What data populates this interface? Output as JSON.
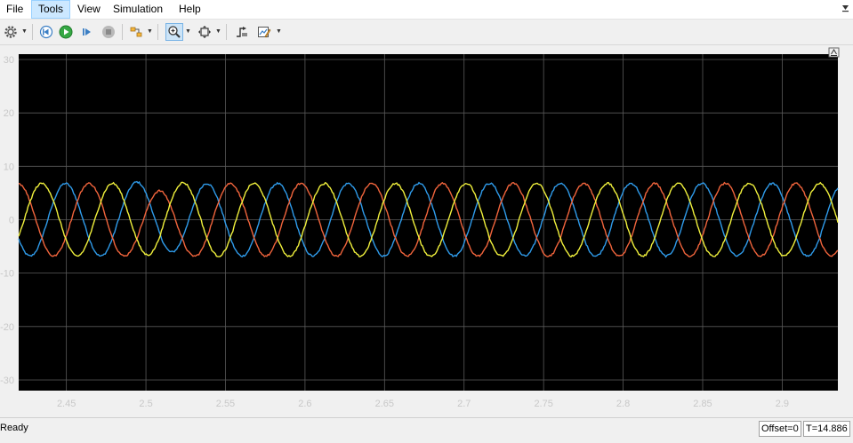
{
  "menu": {
    "file": "File",
    "tools": "Tools",
    "view": "View",
    "simulation": "Simulation",
    "help": "Help"
  },
  "toolbar": {
    "icons": [
      "gear-icon",
      "chevron-down-icon",
      "step-back-icon",
      "run-icon",
      "step-forward-icon",
      "stop-icon",
      "highlight-icon",
      "chevron-down-icon",
      "zoom-in-icon",
      "chevron-down-icon",
      "fit-axes-icon",
      "chevron-down-icon",
      "triggers-icon",
      "style-icon",
      "chevron-down-icon"
    ],
    "zoom_pressed": true
  },
  "status": {
    "text": "Ready",
    "offset": "Offset=0",
    "time": "T=14.886"
  },
  "colors": {
    "background": "#000000",
    "grid": "#5a5a5a",
    "axis_text": "#c8c8c8",
    "series": [
      "#2f9bea",
      "#f0643c",
      "#f0f03c"
    ]
  },
  "chart_data": {
    "type": "line",
    "title": "",
    "xlabel": "",
    "ylabel": "",
    "xlim": [
      2.42,
      2.935
    ],
    "ylim": [
      -32,
      31
    ],
    "xticks": [
      "2.45",
      "2.5",
      "2.55",
      "2.6",
      "2.65",
      "2.7",
      "2.75",
      "2.8",
      "2.85",
      "2.9"
    ],
    "xtick_values": [
      2.45,
      2.5,
      2.55,
      2.6,
      2.65,
      2.7,
      2.75,
      2.8,
      2.85,
      2.9
    ],
    "yticks": [
      "30",
      "20",
      "10",
      "0",
      "-10",
      "-20",
      "-30"
    ],
    "ytick_values": [
      30,
      20,
      10,
      0,
      -10,
      -20,
      -30
    ],
    "grid": true,
    "series": [
      {
        "color": "#2f9bea",
        "frequency_hz": 22.5,
        "amplitude": 6.8,
        "phase_deg": 50,
        "noise": 0.35
      },
      {
        "color": "#f0643c",
        "frequency_hz": 22.5,
        "amplitude": 6.8,
        "phase_deg": -70,
        "noise": 0.35
      },
      {
        "color": "#f0f03c",
        "frequency_hz": 22.5,
        "amplitude": 6.8,
        "phase_deg": 170,
        "noise": 0.35
      }
    ]
  }
}
